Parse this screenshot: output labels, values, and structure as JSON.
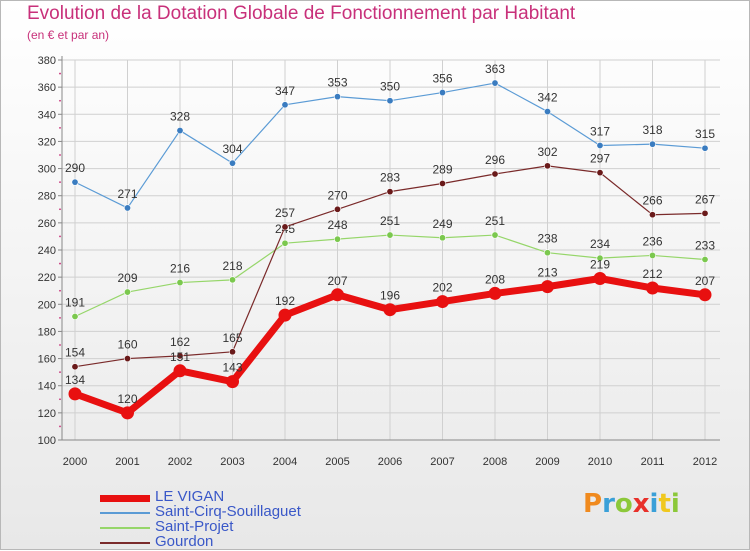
{
  "header": {
    "title": "Evolution de la Dotation Globale de Fonctionnement par Habitant",
    "subtitle": "(en € et par an)"
  },
  "colors": {
    "title": "#c8307a",
    "axis": "#c8307a",
    "grid": "#d0d0d0",
    "legend_text": "#3a58c8"
  },
  "logo": {
    "letters": [
      {
        "ch": "P",
        "color": "#f08a1e"
      },
      {
        "ch": "r",
        "color": "#3aa0d8"
      },
      {
        "ch": "o",
        "color": "#8cc83a"
      },
      {
        "ch": "x",
        "color": "#e8302a"
      },
      {
        "ch": "i",
        "color": "#3aa0d8"
      },
      {
        "ch": "t",
        "color": "#f0c81e"
      },
      {
        "ch": "i",
        "color": "#8cc83a"
      }
    ]
  },
  "chart_data": {
    "type": "line",
    "x": [
      "2000",
      "2001",
      "2002",
      "2003",
      "2004",
      "2005",
      "2006",
      "2007",
      "2008",
      "2009",
      "2010",
      "2011",
      "2012"
    ],
    "ylim": [
      100,
      380
    ],
    "yticks": [
      100,
      120,
      140,
      160,
      180,
      200,
      220,
      240,
      260,
      280,
      300,
      320,
      340,
      360,
      380
    ],
    "grid": true,
    "legend_position": "bottom-left",
    "series": [
      {
        "name": "Saint-Cirq-Souillaguet",
        "color": "#5b9bd5",
        "marker": "#3a7cc0",
        "width": 1.2,
        "values": [
          290,
          271,
          328,
          304,
          347,
          353,
          350,
          356,
          363,
          342,
          317,
          318,
          315
        ],
        "labels": [
          "290",
          "271",
          "328",
          "304",
          "347",
          "353",
          "350",
          "356",
          "363",
          "342",
          "317",
          "318",
          "315"
        ]
      },
      {
        "name": "Saint-Projet",
        "color": "#96d66a",
        "marker": "#7bc84e",
        "width": 1.2,
        "values": [
          191,
          209,
          216,
          218,
          245,
          248,
          251,
          249,
          251,
          238,
          234,
          236,
          233
        ],
        "labels": [
          "191",
          "209",
          "216",
          "218",
          "245",
          "248",
          "251",
          "249",
          "251",
          "238",
          "234",
          "236",
          "233"
        ]
      },
      {
        "name": "Gourdon",
        "color": "#7a2a2a",
        "marker": "#6a1a1a",
        "width": 1.2,
        "values": [
          154,
          160,
          162,
          165,
          257,
          270,
          283,
          289,
          296,
          302,
          297,
          266,
          267
        ],
        "labels": [
          "154",
          "160",
          "162",
          "165",
          "257",
          "270",
          "283",
          "289",
          "296",
          "302",
          "297",
          "266",
          "267"
        ]
      },
      {
        "name": "LE VIGAN",
        "color": "#e81010",
        "marker": "#e81010",
        "width": 7,
        "values": [
          134,
          120,
          151,
          143,
          192,
          207,
          196,
          202,
          208,
          213,
          219,
          212,
          207
        ],
        "labels": [
          "134",
          "120",
          "151",
          "143",
          "192",
          "207",
          "196",
          "202",
          "208",
          "213",
          "219",
          "212",
          "207"
        ]
      }
    ]
  },
  "legend": {
    "items": [
      {
        "label": "LE VIGAN",
        "color": "#e81010",
        "thick": 7
      },
      {
        "label": "Saint-Cirq-Souillaguet",
        "color": "#5b9bd5",
        "thick": 1.5
      },
      {
        "label": "Saint-Projet",
        "color": "#96d66a",
        "thick": 1.5
      },
      {
        "label": "Gourdon",
        "color": "#7a2a2a",
        "thick": 1.5
      }
    ]
  }
}
